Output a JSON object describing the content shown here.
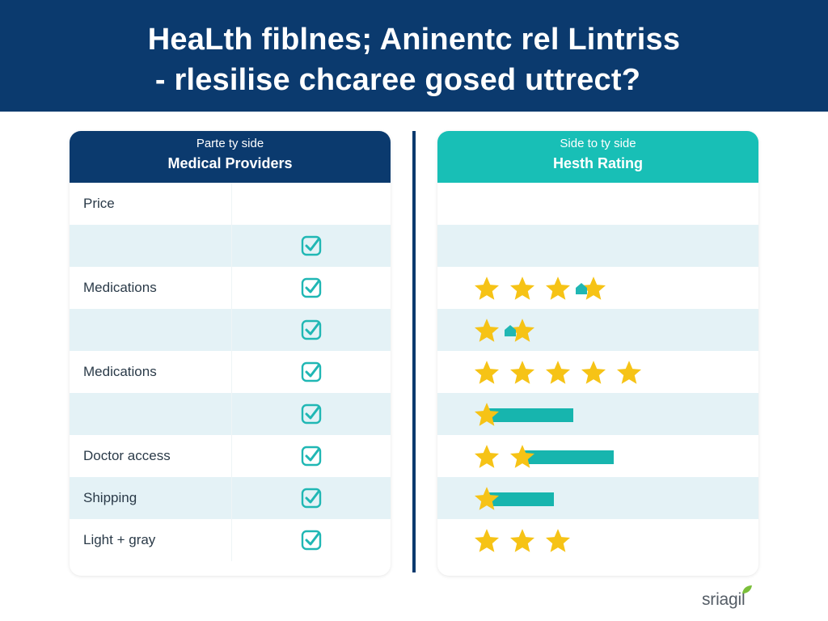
{
  "banner": {
    "line1": "HeaLth fiblnes; Aninentc rel Lintriss",
    "line2": "- rlesilise chcaree gosed uttrect?"
  },
  "left_panel": {
    "subtitle": "Parte ty side",
    "title": "Medical Providers",
    "rows": [
      {
        "label": "Price",
        "checked": false
      },
      {
        "label": "",
        "checked": true
      },
      {
        "label": "Medications",
        "checked": true
      },
      {
        "label": "",
        "checked": true
      },
      {
        "label": "Medications",
        "checked": true
      },
      {
        "label": "",
        "checked": true
      },
      {
        "label": "Doctor access",
        "checked": true
      },
      {
        "label": "Shipping",
        "checked": true
      },
      {
        "label": "Light + gray",
        "checked": true
      }
    ]
  },
  "right_panel": {
    "subtitle": "Side to ty side",
    "title": "Hesth Rating",
    "ratings": [
      {
        "stars": 0,
        "bar": 0
      },
      {
        "stars": 0,
        "bar": 0
      },
      {
        "stars": 4,
        "bar": 0,
        "marker_after": 3
      },
      {
        "stars": 2,
        "bar": 0,
        "marker_after": 1
      },
      {
        "stars": 5,
        "bar": 0
      },
      {
        "stars": 1,
        "bar": 0.52
      },
      {
        "stars": 2,
        "bar": 0.55
      },
      {
        "stars": 1,
        "bar": 0.4
      },
      {
        "stars": 3,
        "bar": 0
      }
    ]
  },
  "colors": {
    "navy": "#0b3a6e",
    "teal": "#18bfb6",
    "star": "#f6c316",
    "check": "#20b7b4"
  },
  "icons": {
    "check": "check-square-icon",
    "star": "star-icon",
    "marker": "house-marker-icon",
    "logo_leaf": "leaf-icon"
  },
  "logo": {
    "text": "sriagil"
  }
}
